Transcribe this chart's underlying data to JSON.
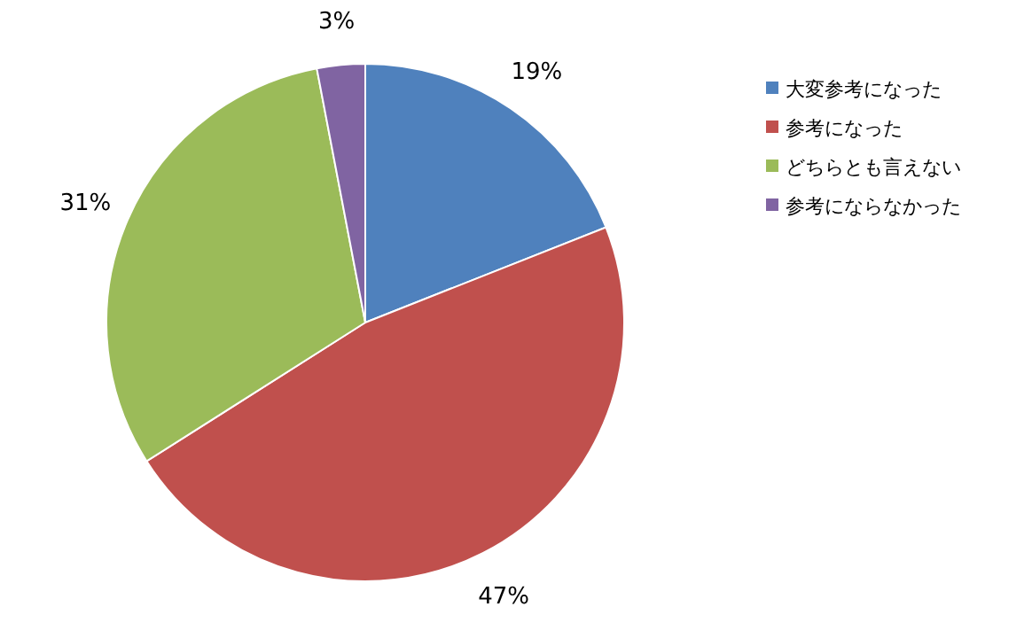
{
  "chart_data": {
    "type": "pie",
    "categories": [
      "大変参考になった",
      "参考になった",
      "どちらとも言えない",
      "参考にならなかった"
    ],
    "values": [
      19,
      47,
      31,
      3
    ],
    "colors": [
      "#4f81bd",
      "#c0504d",
      "#9bbb59",
      "#8064a2"
    ],
    "value_labels": [
      "19%",
      "47%",
      "31%",
      "3%"
    ],
    "legend": "right"
  }
}
